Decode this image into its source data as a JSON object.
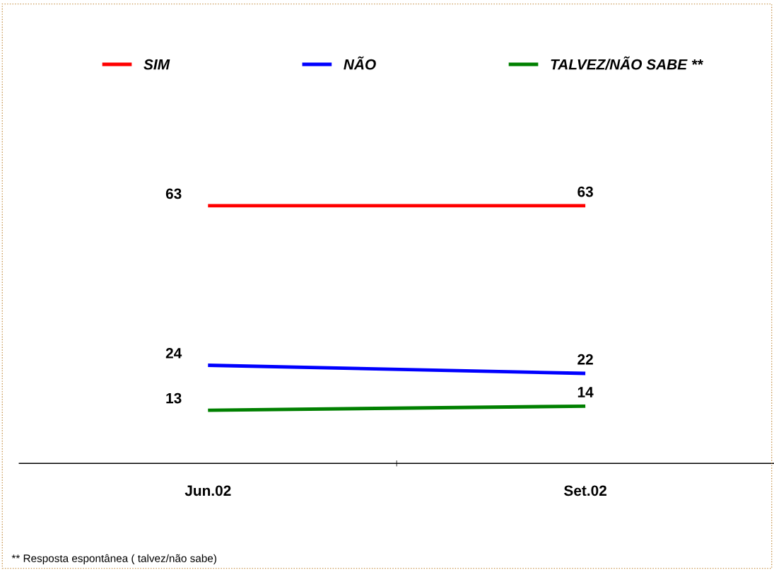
{
  "chart_data": {
    "type": "line",
    "categories": [
      "Jun.02",
      "Set.02"
    ],
    "series": [
      {
        "name": "SIM",
        "color": "#ff0000",
        "values": [
          63,
          63
        ]
      },
      {
        "name": "NÃO",
        "color": "#0000ff",
        "values": [
          24,
          22
        ]
      },
      {
        "name": "TALVEZ/NÃO SABE **",
        "color": "#008000",
        "values": [
          13,
          14
        ]
      }
    ],
    "data_labels": true,
    "legend": "top",
    "grid": false,
    "marker": "none",
    "line_style": "solid",
    "annotations": [
      "** Resposta espontânea ( talvez/não sabe)"
    ]
  }
}
